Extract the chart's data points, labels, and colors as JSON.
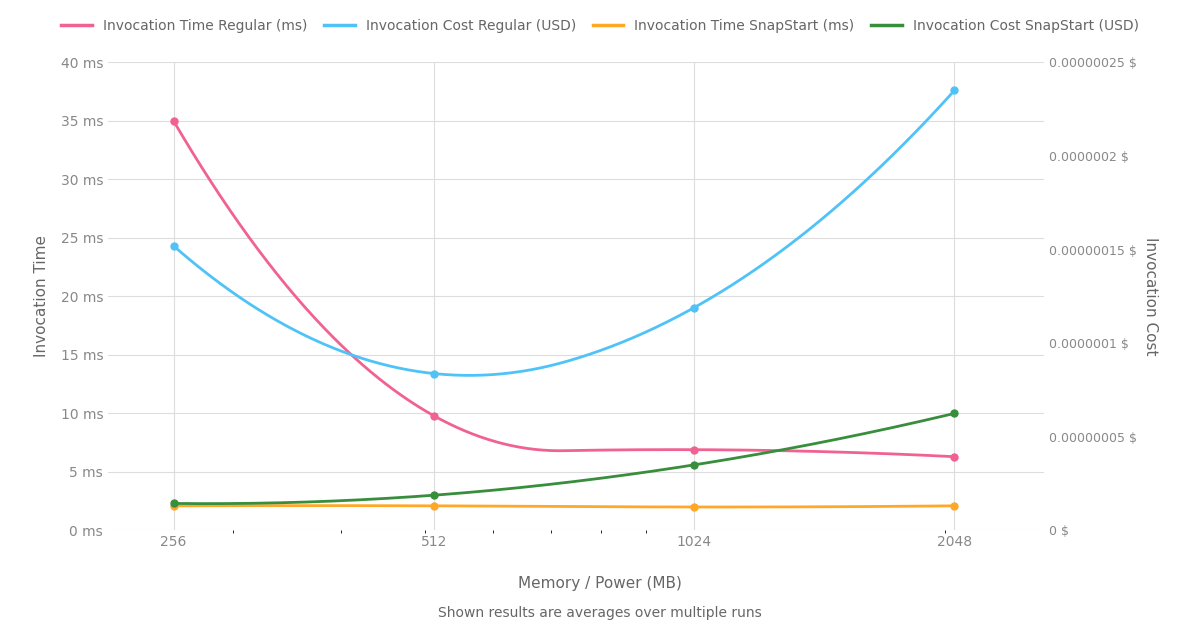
{
  "x": [
    256,
    512,
    1024,
    2048
  ],
  "inv_time_regular": [
    35.0,
    9.8,
    6.9,
    6.3
  ],
  "inv_cost_regular_usd": [
    1.52e-07,
    8.38e-08,
    1.19e-07,
    2.35e-07
  ],
  "inv_time_snapstart": [
    2.1,
    2.1,
    2.0,
    2.1
  ],
  "inv_cost_snapstart_usd": [
    1.44e-08,
    1.88e-08,
    3.5e-08,
    6.25e-08
  ],
  "color_time_regular": "#F06292",
  "color_cost_regular": "#4FC3F7",
  "color_time_snapstart": "#FFA726",
  "color_cost_snapstart": "#388E3C",
  "left_ylabel": "Invocation Time",
  "right_ylabel": "Invocation Cost",
  "xlabel": "Memory / Power (MB)",
  "subtitle": "Shown results are averages over multiple runs",
  "legend_labels": [
    "Invocation Time Regular (ms)",
    "Invocation Cost Regular (USD)",
    "Invocation Time SnapStart (ms)",
    "Invocation Cost SnapStart (USD)"
  ],
  "ylim_left": [
    0,
    40
  ],
  "ylim_right": [
    0,
    2.5e-07
  ],
  "background_color": "#FFFFFF",
  "grid_color": "#DDDDDD",
  "tick_color": "#888888",
  "label_color": "#666666"
}
